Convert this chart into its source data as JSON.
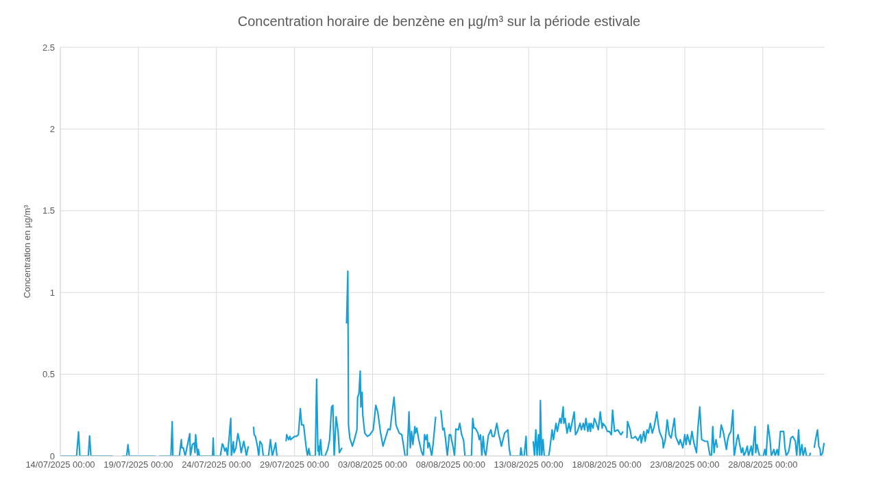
{
  "chart_data": {
    "type": "line",
    "title": "Concentration horaire de benzène en µg/m³ sur la période estivale",
    "ylabel": "Concentration en µg/m³",
    "grid": true,
    "xlim": [
      "2025-07-14T00:00",
      "2025-08-31T23:00"
    ],
    "xticks": [
      {
        "value": "2025-07-14T00:00",
        "label": "14/07/2025 00:00"
      },
      {
        "value": "2025-07-19T00:00",
        "label": "19/07/2025 00:00"
      },
      {
        "value": "2025-07-24T00:00",
        "label": "24/07/2025 00:00"
      },
      {
        "value": "2025-07-29T00:00",
        "label": "29/07/2025 00:00"
      },
      {
        "value": "2025-08-03T00:00",
        "label": "03/08/2025 00:00"
      },
      {
        "value": "2025-08-08T00:00",
        "label": "08/08/2025 00:00"
      },
      {
        "value": "2025-08-13T00:00",
        "label": "13/08/2025 00:00"
      },
      {
        "value": "2025-08-18T00:00",
        "label": "18/08/2025 00:00"
      },
      {
        "value": "2025-08-23T00:00",
        "label": "23/08/2025 00:00"
      },
      {
        "value": "2025-08-28T00:00",
        "label": "28/08/2025 00:00"
      }
    ],
    "ylim": [
      0,
      2.5
    ],
    "yticks": [
      0,
      0.5,
      1,
      1.5,
      2,
      2.5
    ],
    "series": [
      {
        "color": "#15a0d8",
        "x": [
          "2025-07-14T00:00",
          "2025-07-14T09:00",
          "2025-07-15T01:00",
          "2025-07-15T04:00",
          "2025-07-15T06:00",
          "2025-07-15T19:00",
          "2025-07-15T21:00",
          "2025-07-15T23:00",
          "2025-07-17T09:00",
          "2025-07-17T15:00",
          "2025-07-17T23:00",
          "2025-07-18T06:00",
          "2025-07-18T08:00",
          "2025-07-18T10:00",
          "2025-07-20T02:00",
          "2025-07-20T05:00",
          "2025-07-20T08:00",
          "2025-07-21T02:00",
          "2025-07-21T04:00",
          "2025-07-21T05:00",
          "2025-07-21T15:00",
          "2025-07-21T18:00",
          "2025-07-21T19:00",
          "2025-07-21T21:00",
          "2025-07-22T00:00",
          "2025-07-22T07:00",
          "2025-07-22T08:00",
          "2025-07-22T11:00",
          "2025-07-22T14:00",
          "2025-07-22T15:00",
          "2025-07-22T16:00",
          "2025-07-22T19:00",
          "2025-07-22T20:00",
          "2025-07-22T22:00",
          "2025-07-23T18:00",
          "2025-07-23T19:00",
          "2025-07-23T20:00",
          "2025-07-24T06:00",
          "2025-07-24T09:00",
          "2025-07-24T10:00",
          "2025-07-24T13:00",
          "2025-07-24T15:00",
          "2025-07-24T17:00",
          "2025-07-24T22:00",
          "2025-07-24T23:00",
          "2025-07-25T02:00",
          "2025-07-25T03:00",
          "2025-07-25T06:00",
          "2025-07-25T09:00",
          "2025-07-25T12:00",
          "2025-07-25T14:00",
          "2025-07-25T18:00",
          "2025-07-25T20:00",
          "2025-07-25T22:00",
          "2025-07-26T01:00",
          "2025-07-26T06:00",
          "2025-07-26T09:00",
          "2025-07-26T10:00",
          "2025-07-26T12:00",
          "2025-07-26T15:00",
          "2025-07-26T17:00",
          "2025-07-26T19:00",
          "2025-07-26T22:00",
          "2025-07-27T00:00",
          "2025-07-27T08:00",
          "2025-07-27T11:00",
          "2025-07-27T13:00",
          "2025-07-27T14:00",
          "2025-07-27T19:00",
          "2025-07-27T21:00",
          "2025-07-27T23:00",
          "2025-07-28T04:00",
          "2025-07-28T11:00",
          "2025-07-28T12:00",
          "2025-07-28T15:00",
          "2025-07-28T17:00",
          "2025-07-28T18:00",
          "2025-07-29T00:00",
          "2025-07-29T03:00",
          "2025-07-29T06:00",
          "2025-07-29T09:00",
          "2025-07-29T11:00",
          "2025-07-29T14:00",
          "2025-07-29T16:00",
          "2025-07-29T18:00",
          "2025-07-29T20:00",
          "2025-07-29T22:00",
          "2025-07-30T00:00",
          "2025-07-30T08:00",
          "2025-07-30T10:00",
          "2025-07-30T12:00",
          "2025-07-30T13:00",
          "2025-07-30T14:00",
          "2025-07-30T16:00",
          "2025-07-30T18:00",
          "2025-07-30T23:00",
          "2025-07-31T03:00",
          "2025-07-31T06:00",
          "2025-07-31T09:00",
          "2025-07-31T11:00",
          "2025-07-31T12:00",
          "2025-07-31T13:00",
          "2025-07-31T16:00",
          "2025-07-31T19:00",
          "2025-07-31T21:00",
          "2025-08-01T01:00",
          "2025-08-01T06:00",
          "2025-08-01T08:00",
          "2025-08-01T10:00",
          "2025-08-01T11:00",
          "2025-08-01T13:00",
          "2025-08-01T17:00",
          "2025-08-01T20:00",
          "2025-08-02T00:00",
          "2025-08-02T01:00",
          "2025-08-02T03:00",
          "2025-08-02T05:00",
          "2025-08-02T06:00",
          "2025-08-02T08:00",
          "2025-08-02T09:00",
          "2025-08-02T12:00",
          "2025-08-02T16:00",
          "2025-08-02T20:00",
          "2025-08-03T01:00",
          "2025-08-03T05:00",
          "2025-08-03T08:00",
          "2025-08-03T12:00",
          "2025-08-03T16:00",
          "2025-08-03T19:00",
          "2025-08-04T00:00",
          "2025-08-04T03:00",
          "2025-08-04T05:00",
          "2025-08-04T09:00",
          "2025-08-04T12:00",
          "2025-08-04T17:00",
          "2025-08-04T21:00",
          "2025-08-04T23:00",
          "2025-08-05T02:00",
          "2025-08-05T05:00",
          "2025-08-05T07:00",
          "2025-08-05T08:00",
          "2025-08-05T10:00",
          "2025-08-05T12:00",
          "2025-08-05T14:00",
          "2025-08-05T17:00",
          "2025-08-05T18:00",
          "2025-08-05T20:00",
          "2025-08-05T23:00",
          "2025-08-06T03:00",
          "2025-08-06T06:00",
          "2025-08-06T08:00",
          "2025-08-06T10:00",
          "2025-08-06T12:00",
          "2025-08-06T13:00",
          "2025-08-06T15:00",
          "2025-08-06T19:00",
          "2025-08-06T21:00",
          "2025-08-07T01:00",
          "2025-08-07T04:00",
          "2025-08-07T09:00",
          "2025-08-07T12:00",
          "2025-08-07T14:00",
          "2025-08-07T16:00",
          "2025-08-07T19:00",
          "2025-08-07T22:00",
          "2025-08-08T00:00",
          "2025-08-08T04:00",
          "2025-08-08T06:00",
          "2025-08-08T08:00",
          "2025-08-08T12:00",
          "2025-08-08T14:00",
          "2025-08-08T17:00",
          "2025-08-08T20:00",
          "2025-08-08T22:00",
          "2025-08-09T08:00",
          "2025-08-09T10:00",
          "2025-08-09T12:00",
          "2025-08-09T14:00",
          "2025-08-09T18:00",
          "2025-08-09T20:00",
          "2025-08-09T22:00",
          "2025-08-10T00:00",
          "2025-08-10T02:00",
          "2025-08-10T04:00",
          "2025-08-10T06:00",
          "2025-08-10T10:00",
          "2025-08-10T14:00",
          "2025-08-10T16:00",
          "2025-08-10T19:00",
          "2025-08-10T23:00",
          "2025-08-11T02:00",
          "2025-08-11T04:00",
          "2025-08-11T06:00",
          "2025-08-11T11:00",
          "2025-08-11T16:00",
          "2025-08-11T18:00",
          "2025-08-11T20:00",
          "2025-08-12T11:00",
          "2025-08-12T12:00",
          "2025-08-12T14:00",
          "2025-08-12T17:00",
          "2025-08-12T20:00",
          "2025-08-12T21:00",
          "2025-08-13T00:00",
          "2025-08-13T04:00",
          "2025-08-13T07:00",
          "2025-08-13T09:00",
          "2025-08-13T11:00",
          "2025-08-13T13:00",
          "2025-08-13T15:00",
          "2025-08-13T17:00",
          "2025-08-13T18:00",
          "2025-08-13T20:00",
          "2025-08-13T22:00",
          "2025-08-14T00:00",
          "2025-08-14T07:00",
          "2025-08-14T09:00",
          "2025-08-14T12:00",
          "2025-08-14T14:00",
          "2025-08-14T18:00",
          "2025-08-14T20:00",
          "2025-08-15T00:00",
          "2025-08-15T02:00",
          "2025-08-15T05:00",
          "2025-08-15T06:00",
          "2025-08-15T08:00",
          "2025-08-15T11:00",
          "2025-08-15T14:00",
          "2025-08-15T16:00",
          "2025-08-15T22:00",
          "2025-08-16T00:00",
          "2025-08-16T03:00",
          "2025-08-16T07:00",
          "2025-08-16T09:00",
          "2025-08-16T12:00",
          "2025-08-16T14:00",
          "2025-08-16T16:00",
          "2025-08-16T19:00",
          "2025-08-16T21:00",
          "2025-08-16T23:00",
          "2025-08-17T00:00",
          "2025-08-17T03:00",
          "2025-08-17T05:00",
          "2025-08-17T08:00",
          "2025-08-17T11:00",
          "2025-08-17T14:00",
          "2025-08-17T17:00",
          "2025-08-17T18:00",
          "2025-08-17T22:00",
          "2025-08-18T01:00",
          "2025-08-18T04:00",
          "2025-08-18T07:00",
          "2025-08-18T09:00",
          "2025-08-18T12:00",
          "2025-08-18T17:00",
          "2025-08-18T20:00",
          "2025-08-18T22:00",
          "2025-08-19T01:00",
          "2025-08-19T04:00",
          "2025-08-19T07:00",
          "2025-08-19T08:00",
          "2025-08-19T12:00",
          "2025-08-19T14:00",
          "2025-08-19T17:00",
          "2025-08-19T20:00",
          "2025-08-20T00:00",
          "2025-08-20T04:00",
          "2025-08-20T05:00",
          "2025-08-20T09:00",
          "2025-08-20T11:00",
          "2025-08-20T14:00",
          "2025-08-20T16:00",
          "2025-08-20T19:00",
          "2025-08-20T22:00",
          "2025-08-21T01:00",
          "2025-08-21T05:00",
          "2025-08-21T07:00",
          "2025-08-21T09:00",
          "2025-08-21T12:00",
          "2025-08-21T14:00",
          "2025-08-21T15:00",
          "2025-08-21T18:00",
          "2025-08-21T21:00",
          "2025-08-22T00:00",
          "2025-08-22T03:00",
          "2025-08-22T08:00",
          "2025-08-22T10:00",
          "2025-08-22T12:00",
          "2025-08-22T15:00",
          "2025-08-22T17:00",
          "2025-08-22T21:00",
          "2025-08-23T00:00",
          "2025-08-23T02:00",
          "2025-08-23T04:00",
          "2025-08-23T08:00",
          "2025-08-23T11:00",
          "2025-08-23T14:00",
          "2025-08-23T18:00",
          "2025-08-23T20:00",
          "2025-08-23T23:00",
          "2025-08-24T01:00",
          "2025-08-24T02:00",
          "2025-08-24T07:00",
          "2025-08-24T11:00",
          "2025-08-24T13:00",
          "2025-08-24T15:00",
          "2025-08-24T17:00",
          "2025-08-24T19:00",
          "2025-08-24T21:00",
          "2025-08-24T22:00",
          "2025-08-25T00:00",
          "2025-08-25T02:00",
          "2025-08-25T05:00",
          "2025-08-25T06:00",
          "2025-08-25T08:00",
          "2025-08-25T11:00",
          "2025-08-25T12:00",
          "2025-08-25T16:00",
          "2025-08-25T18:00",
          "2025-08-25T20:00",
          "2025-08-25T23:00",
          "2025-08-26T02:00",
          "2025-08-26T03:00",
          "2025-08-26T04:00",
          "2025-08-26T08:00",
          "2025-08-26T10:00",
          "2025-08-26T12:00",
          "2025-08-26T15:00",
          "2025-08-26T17:00",
          "2025-08-26T19:00",
          "2025-08-26T22:00",
          "2025-08-27T00:00",
          "2025-08-27T02:00",
          "2025-08-27T06:00",
          "2025-08-27T08:00",
          "2025-08-27T12:00",
          "2025-08-27T13:00",
          "2025-08-27T15:00",
          "2025-08-27T17:00",
          "2025-08-27T19:00",
          "2025-08-28T01:00",
          "2025-08-28T03:00",
          "2025-08-28T05:00",
          "2025-08-28T08:00",
          "2025-08-28T11:00",
          "2025-08-28T13:00",
          "2025-08-28T17:00",
          "2025-08-28T19:00",
          "2025-08-28T22:00",
          "2025-08-29T00:00",
          "2025-08-29T03:00",
          "2025-08-29T08:00",
          "2025-08-29T10:00",
          "2025-08-29T12:00",
          "2025-08-29T16:00",
          "2025-08-29T19:00",
          "2025-08-29T22:00",
          "2025-08-30T02:00",
          "2025-08-30T04:00",
          "2025-08-30T07:00",
          "2025-08-30T09:00",
          "2025-08-30T12:00",
          "2025-08-30T14:00",
          "2025-08-30T17:00",
          "2025-08-30T19:00",
          "2025-08-31T00:00",
          "2025-08-31T01:00",
          "2025-08-31T04:00",
          "2025-08-31T07:00",
          "2025-08-31T09:00",
          "2025-08-31T12:00",
          "2025-08-31T14:00",
          "2025-08-31T16:00",
          "2025-08-31T17:00",
          "2025-08-31T20:00",
          "2025-08-31T22:00"
        ],
        "values": [
          0,
          0,
          0,
          0.148,
          0,
          0,
          0.123,
          0,
          0,
          null,
          0,
          0,
          0.07,
          0,
          0,
          null,
          0,
          0,
          0.21,
          0,
          0,
          0.1,
          0.05,
          0.05,
          0,
          0.137,
          0,
          0.07,
          0.08,
          0.02,
          0.13,
          0,
          0.04,
          0,
          0,
          0.11,
          0,
          0,
          0.074,
          0.07,
          0.03,
          0.05,
          0,
          0.23,
          0,
          0.088,
          0.02,
          0.05,
          0.137,
          0.08,
          0.02,
          0.09,
          0.05,
          0,
          0.06,
          null,
          0.179,
          0.13,
          0.12,
          0.06,
          0,
          0.09,
          0.07,
          0,
          0,
          0.1,
          0.03,
          0,
          0.08,
          0,
          0,
          null,
          0.09,
          0.13,
          0.1,
          0.12,
          0.1,
          0.12,
          0.12,
          0.13,
          0.29,
          0.19,
          0.19,
          0.12,
          0.05,
          0,
          0.046,
          0,
          0,
          0.47,
          0.03,
          0.06,
          0,
          0.1,
          0,
          0,
          0.04,
          0.1,
          0.3,
          0.31,
          0.15,
          0,
          0.24,
          0.15,
          0.02,
          0.05,
          null,
          0.81,
          1.13,
          0.19,
          0.11,
          0.06,
          0.1,
          0.16,
          0.36,
          0.38,
          0.52,
          0.3,
          0.39,
          0.25,
          0.14,
          0.12,
          0.13,
          0.16,
          0.31,
          0.27,
          0.15,
          0.06,
          0.1,
          0.165,
          0.16,
          0.23,
          0.36,
          0.19,
          0.14,
          0.13,
          0.08,
          0,
          0,
          0.17,
          0.27,
          0.05,
          0.15,
          0.07,
          0.18,
          0.14,
          0.17,
          0.1,
          0.03,
          0,
          0.13,
          0.1,
          0.13,
          0.05,
          0.08,
          0,
          0.07,
          0.24,
          null,
          0.28,
          0.16,
          0.17,
          0.11,
          0,
          0.13,
          0.13,
          0.05,
          0,
          0.165,
          0.16,
          0.2,
          0.13,
          0.095,
          0,
          0,
          0.23,
          0.17,
          0.17,
          0.14,
          0.1,
          0.13,
          0,
          0.12,
          0.03,
          0,
          0.126,
          0.16,
          0.12,
          0.12,
          0.2,
          0.13,
          0.1,
          0.06,
          0.14,
          0.16,
          0.05,
          0,
          0,
          0.05,
          0,
          0,
          0.12,
          0,
          0,
          null,
          0.09,
          0,
          0.16,
          0,
          0.13,
          0,
          0.34,
          0,
          0.1,
          0,
          0,
          0.06,
          0.16,
          0.1,
          0.2,
          0.15,
          0.23,
          0.2,
          0.3,
          0.2,
          0.23,
          0.14,
          0.2,
          0.15,
          0.27,
          0.13,
          0.15,
          0.2,
          0.16,
          0.2,
          0.16,
          0.23,
          0.15,
          0.2,
          0.15,
          0.2,
          0.17,
          0.23,
          0.2,
          0.16,
          0.27,
          0.17,
          0.2,
          0.18,
          0.15,
          0.15,
          0.13,
          0.28,
          0.15,
          0.16,
          0.14,
          0.13,
          0.15,
          null,
          0.11,
          0.21,
          0.16,
          0.11,
          0.11,
          0.12,
          0.095,
          0.13,
          0.08,
          0.15,
          0.09,
          0.16,
          0.14,
          0.2,
          0.14,
          0.18,
          0.27,
          0.2,
          0.15,
          0.12,
          0.1,
          0.05,
          0.1,
          0.22,
          0.13,
          0.11,
          0.23,
          0.12,
          0.1,
          0.07,
          0.1,
          0.05,
          0.13,
          0.07,
          0.13,
          0.07,
          0.15,
          0.08,
          0.02,
          0.16,
          0.3,
          0.16,
          0.1,
          0.09,
          0.09,
          0.04,
          0,
          0,
          0.18,
          0.02,
          0.06,
          0.1,
          0.05,
          null,
          0.11,
          0.19,
          0.15,
          0.13,
          0.04,
          0.1,
          0.13,
          0.15,
          0.28,
          0.1,
          0,
          0.1,
          0.13,
          0.08,
          0.02,
          0.05,
          0,
          0.03,
          0.06,
          0,
          0.06,
          0,
          0.18,
          0.02,
          0.07,
          0.03,
          0,
          0,
          0.04,
          0,
          0.19,
          0.1,
          0,
          0.04,
          0,
          0.04,
          0,
          0.15,
          0.15,
          0.05,
          0,
          0.03,
          0.11,
          0.12,
          0.09,
          0,
          0.16,
          0,
          0.07,
          0,
          0.05,
          0,
          0,
          0.02,
          null,
          0.05,
          0.1,
          0.16,
          0.06,
          0.04,
          0,
          0.02,
          0.08
        ]
      }
    ]
  }
}
